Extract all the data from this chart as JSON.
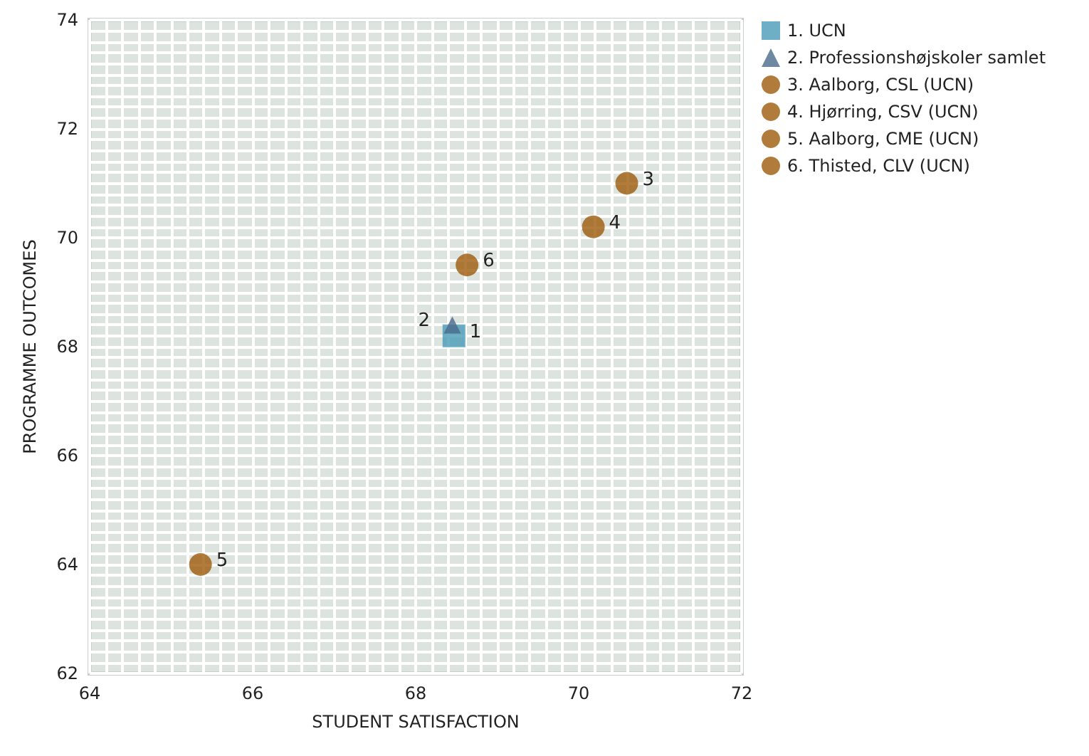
{
  "chart_data": {
    "type": "scatter",
    "xlabel": "STUDENT SATISFACTION",
    "ylabel": "PROGRAMME OUTCOMES",
    "xlim": [
      64,
      72
    ],
    "ylim": [
      62,
      74
    ],
    "xticks": [
      64,
      66,
      68,
      70,
      72
    ],
    "yticks": [
      62,
      64,
      66,
      68,
      70,
      72,
      74
    ],
    "grid": true,
    "legend": "top right",
    "series": [
      {
        "name": "1. UCN",
        "color": "#4a9bb8",
        "marker": "square",
        "x": [
          68.47
        ],
        "values": [
          68.2
        ]
      },
      {
        "name": "2. Professionshøjskoler samlet",
        "color": "#4a6a8a",
        "marker": "triangle",
        "x": [
          68.45
        ],
        "values": [
          68.4
        ]
      },
      {
        "name": "3. Aalborg, CSL (UCN)",
        "color": "#9c5a0a",
        "marker": "circle",
        "x": [
          70.59
        ],
        "values": [
          71.0
        ]
      },
      {
        "name": "4. Hjørring, CSV (UCN)",
        "color": "#9c5a0a",
        "marker": "circle",
        "x": [
          70.18
        ],
        "values": [
          70.2
        ]
      },
      {
        "name": "5. Aalborg, CME (UCN)",
        "color": "#9c5a0a",
        "marker": "circle",
        "x": [
          65.36
        ],
        "values": [
          64.0
        ]
      },
      {
        "name": "6. Thisted, CLV (UCN)",
        "color": "#9c5a0a",
        "marker": "circle",
        "x": [
          68.63
        ],
        "values": [
          69.5
        ]
      }
    ],
    "annotations": [
      {
        "text": "1",
        "x": 68.47,
        "y": 68.2
      },
      {
        "text": "2",
        "x": 68.45,
        "y": 68.4
      },
      {
        "text": "3",
        "x": 70.59,
        "y": 71.0
      },
      {
        "text": "4",
        "x": 70.18,
        "y": 70.2
      },
      {
        "text": "5",
        "x": 65.36,
        "y": 64.0
      },
      {
        "text": "6",
        "x": 68.63,
        "y": 69.5
      }
    ]
  }
}
